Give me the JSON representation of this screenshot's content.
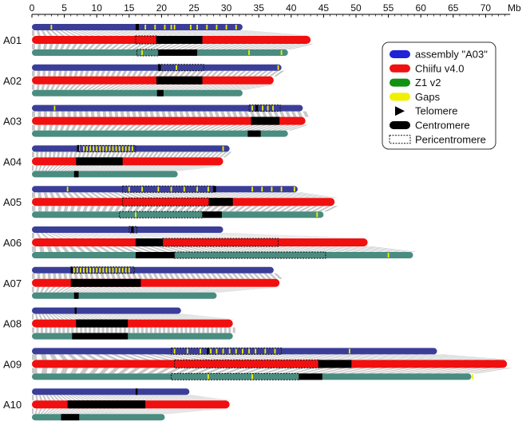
{
  "axis": {
    "unit": "Mb",
    "ticks": [
      "0",
      "5",
      "10",
      "15",
      "20",
      "25",
      "30",
      "35",
      "40",
      "45",
      "50",
      "55",
      "60",
      "65",
      "70"
    ],
    "max": 73.3
  },
  "colors": {
    "assembly_a03": "#3b3e99",
    "chiifu": "#f01010",
    "z1": "#4a8c80",
    "gap": "#f0f000",
    "centromere": "#000000",
    "synteny": "#bdbdbd"
  },
  "legend": {
    "entries": [
      {
        "label": "assembly \"A03\"",
        "color": "#1f22d6",
        "kind": "bar"
      },
      {
        "label": "Chiifu v4.0",
        "color": "#f01010",
        "kind": "bar"
      },
      {
        "label": "Z1 v2",
        "color": "#129012",
        "kind": "bar"
      },
      {
        "label": "Gaps",
        "color": "#f0f000",
        "kind": "bar"
      },
      {
        "label": "Telomere",
        "color": "#000000",
        "kind": "triangle"
      },
      {
        "label": "Centromere",
        "color": "#000000",
        "kind": "bar"
      },
      {
        "label": "Pericentromere",
        "color": "#ffffff",
        "kind": "dashed"
      }
    ]
  },
  "chromosomes": [
    {
      "name": "A01",
      "a03": {
        "len": 32.5,
        "cen": [
          16,
          16.5
        ],
        "peri": null,
        "gaps": [
          3,
          16.2,
          17.5,
          19,
          20.5,
          21.5,
          22,
          24.5,
          25.5,
          27,
          28.5,
          30,
          31.5
        ]
      },
      "chiifu": {
        "len": 43.0,
        "cen": [
          19.2,
          26.3
        ],
        "peri": [
          16,
          19.2
        ]
      },
      "z1": {
        "len": 39.5,
        "cen": [
          19.5,
          25.5
        ],
        "peri": [
          16.2,
          19.5
        ],
        "gaps": [
          17,
          33.5,
          38.5
        ]
      }
    },
    {
      "name": "A02",
      "a03": {
        "len": 38.5,
        "cen": [
          19.5,
          19.9
        ],
        "peri": [
          19.5,
          26.5
        ],
        "gaps": [
          22.3,
          38
        ]
      },
      "chiifu": {
        "len": 37.3,
        "cen": [
          19.2,
          26.3
        ],
        "peri": null
      },
      "z1": {
        "len": 32.5,
        "cen": [
          19.3,
          20.3
        ],
        "peri": null,
        "gaps": []
      }
    },
    {
      "name": "A03",
      "a03": {
        "len": 41.8,
        "cen": [
          34.5,
          34.9
        ],
        "peri": [
          33.5,
          38.3
        ],
        "gaps": [
          3.5,
          34,
          34.8,
          35.6,
          36.4,
          37.2
        ]
      },
      "chiifu": {
        "len": 42.2,
        "cen": [
          33.8,
          38.2
        ],
        "peri": null
      },
      "z1": {
        "len": 39.5,
        "cen": [
          33.3,
          35.3
        ],
        "peri": null,
        "gaps": []
      }
    },
    {
      "name": "A04",
      "a03": {
        "len": 30.5,
        "cen": [
          7,
          7.3
        ],
        "peri": [
          7,
          16
        ],
        "gaps": [
          7.3,
          8,
          8.5,
          9,
          9.5,
          10,
          10.5,
          11,
          11.5,
          12,
          12.5,
          13,
          13.5,
          14,
          14.5,
          15,
          15.5,
          29.5
        ]
      },
      "chiifu": {
        "len": 29.5,
        "cen": [
          6.8,
          14
        ],
        "peri": null
      },
      "z1": {
        "len": 22.5,
        "cen": [
          6.5,
          7.2
        ],
        "peri": null,
        "gaps": []
      }
    },
    {
      "name": "A05",
      "a03": {
        "len": 41.0,
        "cen": [
          28,
          28.4
        ],
        "peri": [
          14,
          28
        ],
        "gaps": [
          5.5,
          15,
          17,
          19.5,
          21.5,
          23.5,
          25.5,
          27.2,
          34,
          35.5,
          37,
          38.5,
          40.5
        ]
      },
      "chiifu": {
        "len": 46.7,
        "cen": [
          27.3,
          31
        ],
        "peri": [
          14,
          27.3
        ]
      },
      "z1": {
        "len": 45.0,
        "cen": [
          26.3,
          29.3
        ],
        "peri": [
          13.5,
          26.3
        ],
        "gaps": [
          16,
          44
        ]
      }
    },
    {
      "name": "A06",
      "a03": {
        "len": 29.5,
        "cen": [
          15.3,
          15.7
        ],
        "peri": [
          15,
          16.2
        ],
        "gaps": [
          15.5
        ]
      },
      "chiifu": {
        "len": 51.8,
        "cen": [
          16,
          20.2
        ],
        "peri": [
          20.2,
          38
        ]
      },
      "z1": {
        "len": 58.8,
        "cen": [
          16,
          22
        ],
        "peri": [
          22,
          45.3
        ],
        "gaps": [
          20.5,
          55
        ]
      }
    },
    {
      "name": "A07",
      "a03": {
        "len": 37.3,
        "cen": [
          6,
          6.3
        ],
        "peri": [
          6,
          15.8
        ],
        "gaps": [
          6.5,
          7,
          7.5,
          8,
          8.5,
          9,
          9.5,
          10,
          10.5,
          11,
          11.5,
          12,
          12.5,
          13,
          13.5,
          14,
          14.5,
          15
        ]
      },
      "chiifu": {
        "len": 38.2,
        "cen": [
          6,
          16.8
        ],
        "peri": null
      },
      "z1": {
        "len": 28.5,
        "cen": [
          6.5,
          7.2
        ],
        "peri": null,
        "gaps": []
      }
    },
    {
      "name": "A08",
      "a03": {
        "len": 23.0,
        "cen": [
          6.6,
          6.9
        ],
        "peri": null,
        "gaps": []
      },
      "chiifu": {
        "len": 31.0,
        "cen": [
          6.8,
          14.8
        ],
        "peri": null
      },
      "z1": {
        "len": 31.0,
        "cen": [
          6.2,
          14.8
        ],
        "peri": null,
        "gaps": []
      }
    },
    {
      "name": "A09",
      "a03": {
        "len": 62.5,
        "cen": [
          27,
          27.3
        ],
        "peri": [
          21.5,
          38.5
        ],
        "gaps": [
          22,
          24,
          26,
          27.6,
          28.5,
          29.5,
          30.5,
          31.5,
          32.5,
          33.5,
          34.5,
          36,
          37.5,
          49
        ]
      },
      "chiifu": {
        "len": 73.3,
        "cen": [
          44.2,
          49.3
        ],
        "peri": [
          22,
          44.2
        ]
      },
      "z1": {
        "len": 67.8,
        "cen": [
          41.2,
          44.8
        ],
        "peri": [
          21.5,
          41.2
        ],
        "gaps": [
          27.2,
          34,
          68
        ]
      }
    },
    {
      "name": "A10",
      "a03": {
        "len": 24.3,
        "cen": [
          16,
          16.3
        ],
        "peri": null,
        "gaps": []
      },
      "chiifu": {
        "len": 30.5,
        "cen": [
          5.5,
          17.5
        ],
        "peri": null
      },
      "z1": {
        "len": 20.5,
        "cen": [
          4.5,
          7.3
        ],
        "peri": null,
        "gaps": []
      }
    }
  ]
}
